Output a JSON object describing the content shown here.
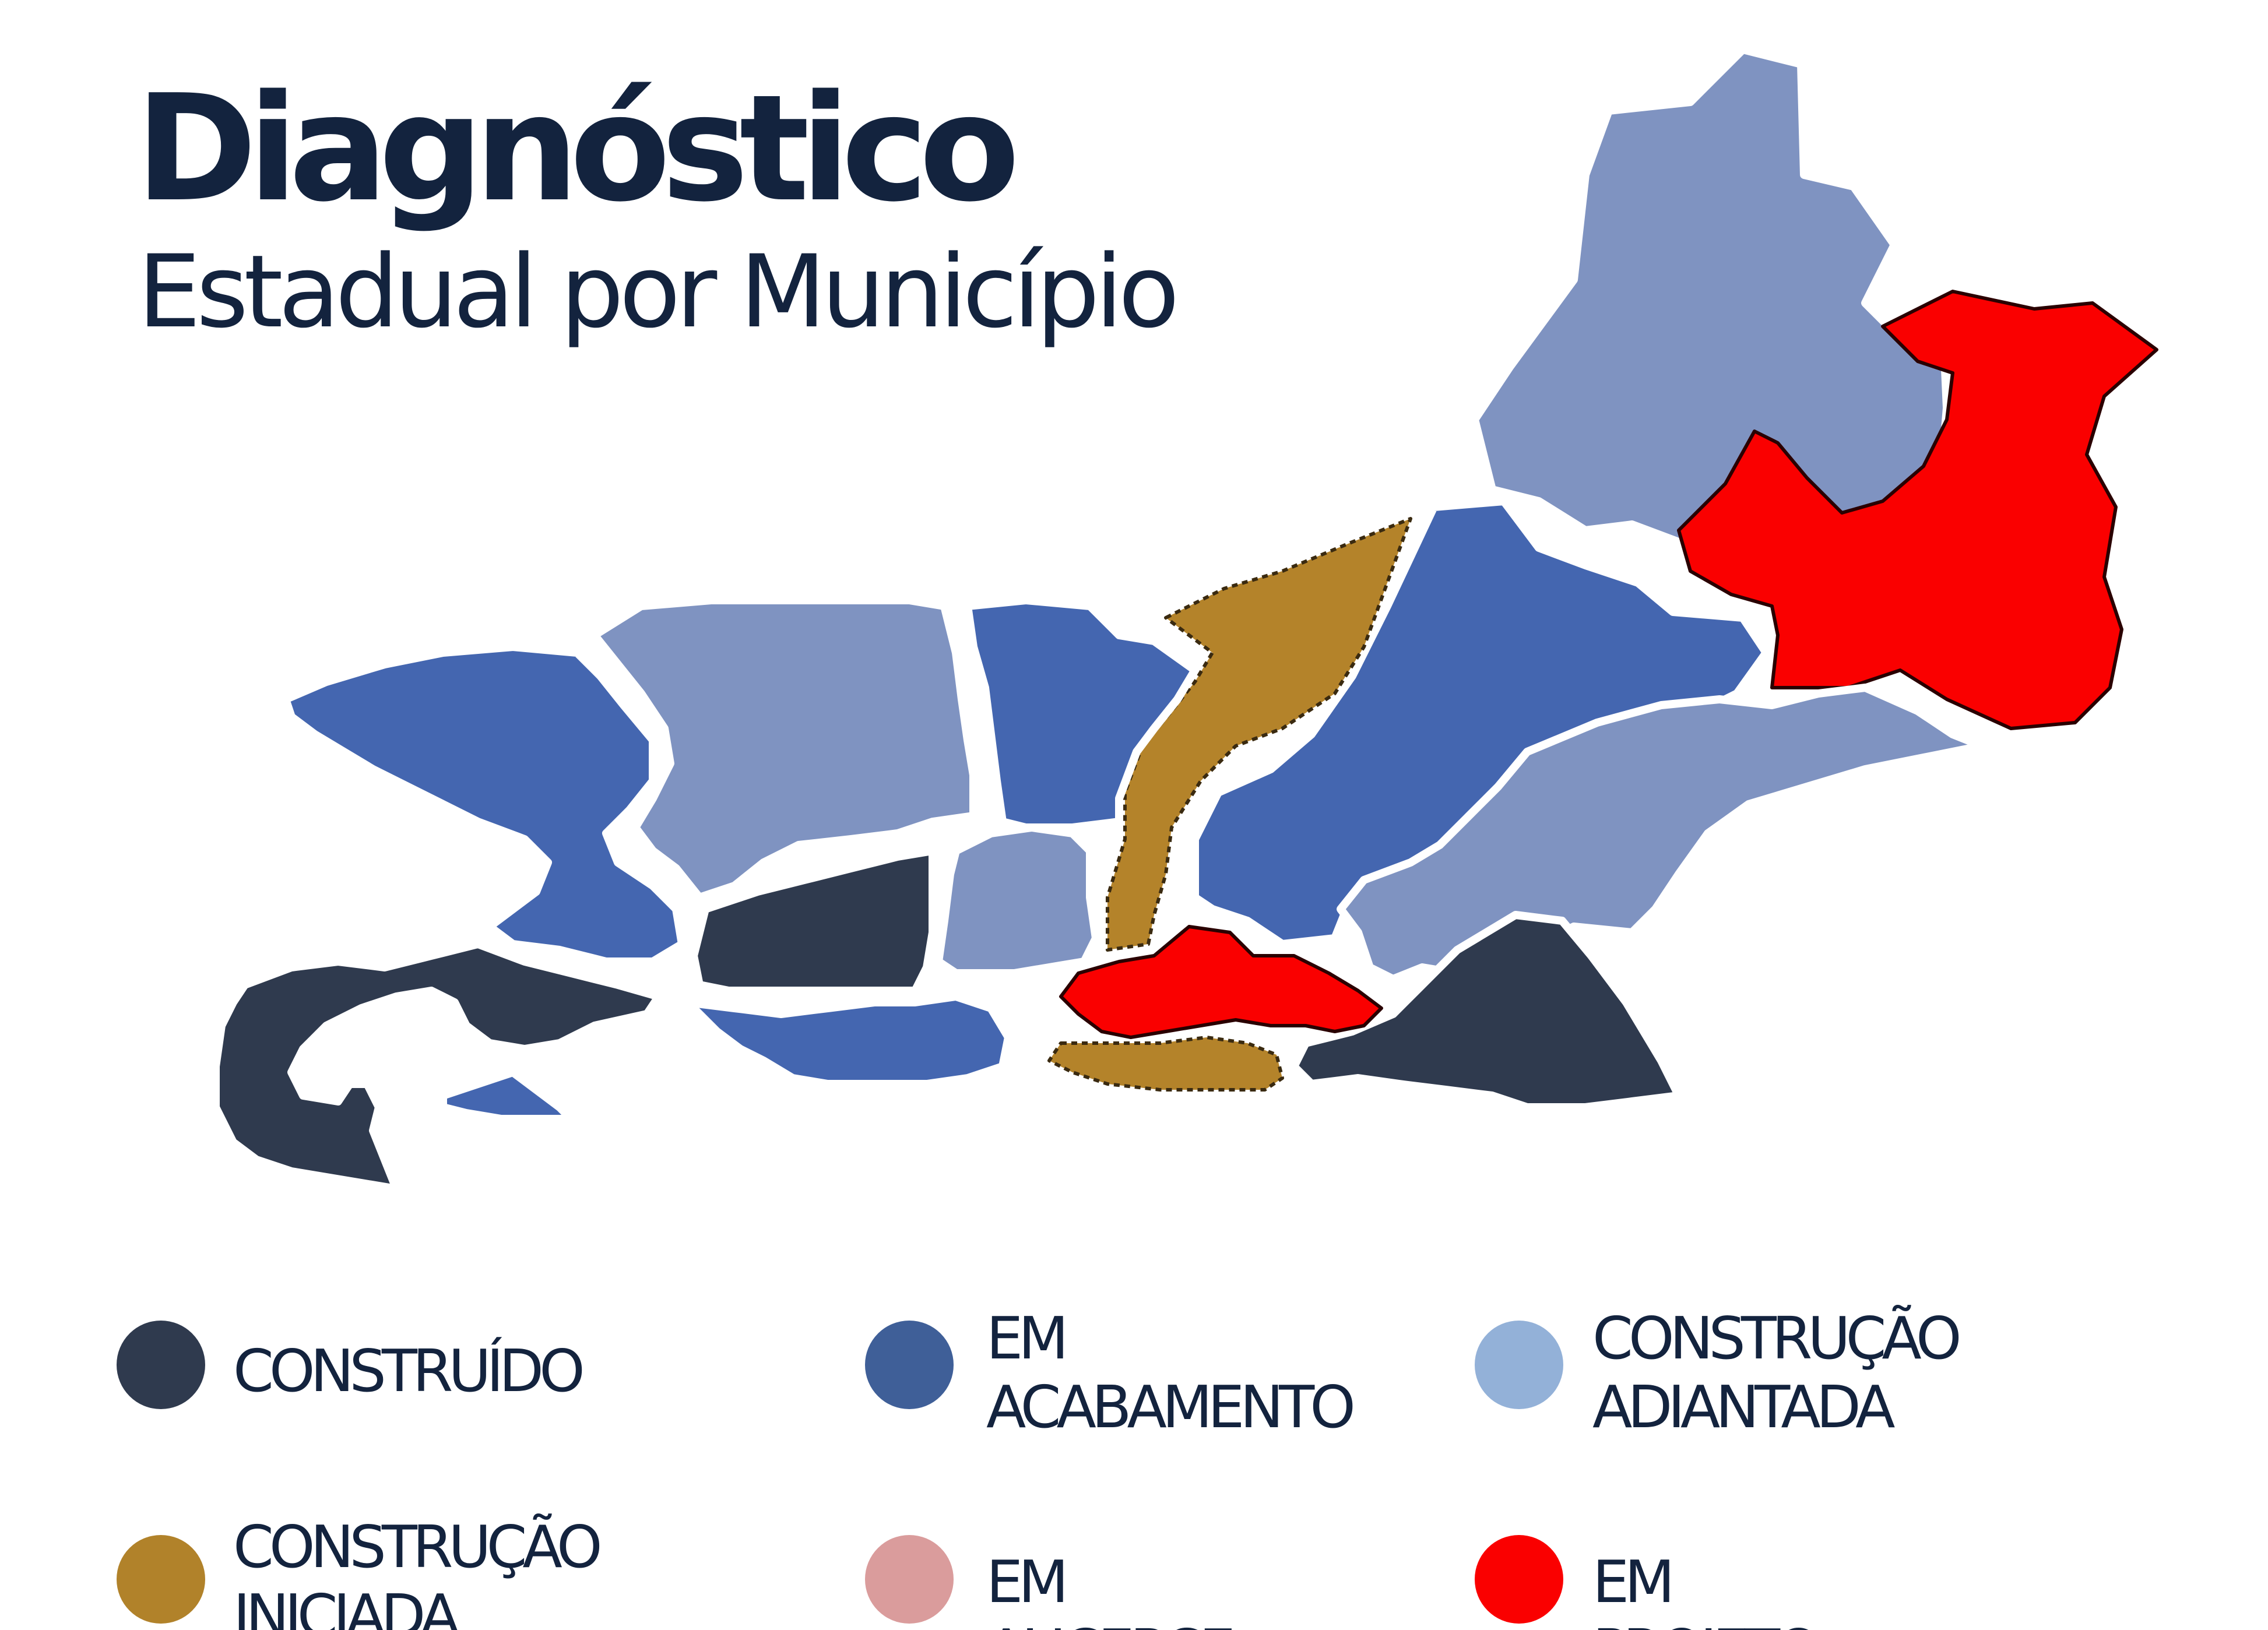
{
  "header": {
    "title": "Diagnóstico",
    "subtitle": "Estadual por Município"
  },
  "legend": {
    "items": [
      {
        "key": "construido",
        "label": "CONSTRUÍDO",
        "color": "#2f3a4e"
      },
      {
        "key": "em_acabamento",
        "label": "EM\nACABAMENTO",
        "color": "#3f5f98"
      },
      {
        "key": "construcao_adiantada",
        "label": "CONSTRUÇÃO\nADIANTADA",
        "color": "#93b1d8"
      },
      {
        "key": "construcao_iniciada",
        "label": "CONSTRUÇÃO\nINICIADA",
        "color": "#b1822a"
      },
      {
        "key": "em_alicerce",
        "label": "EM ALICERCE",
        "color": "#da9c9c"
      },
      {
        "key": "em_projeto",
        "label": "EM PROJETO",
        "color": "#fa0000"
      }
    ]
  },
  "map": {
    "region_colors": {
      "construido": "#2f3a4e",
      "em_acabamento": "#4466b0",
      "construcao_adiantada": "#7f93c1",
      "construcao_iniciada": "#b4832a",
      "em_projeto": "#fa0000"
    },
    "regions": [
      {
        "name": "region-north-large",
        "status": "construcao_adiantada"
      },
      {
        "name": "region-northeast",
        "status": "em_projeto"
      },
      {
        "name": "region-central-east",
        "status": "em_acabamento"
      },
      {
        "name": "region-central-strip",
        "status": "construcao_iniciada"
      },
      {
        "name": "region-east-middle",
        "status": "construcao_adiantada"
      },
      {
        "name": "region-southeast",
        "status": "construido"
      },
      {
        "name": "region-south-coast-red",
        "status": "em_projeto"
      },
      {
        "name": "region-south-coast-gold",
        "status": "construcao_iniciada"
      },
      {
        "name": "region-central-north",
        "status": "em_acabamento"
      },
      {
        "name": "region-central-small",
        "status": "construcao_adiantada"
      },
      {
        "name": "region-west-center",
        "status": "construcao_adiantada"
      },
      {
        "name": "region-west",
        "status": "em_acabamento"
      },
      {
        "name": "region-center-dark",
        "status": "construido"
      },
      {
        "name": "region-south-blue",
        "status": "em_acabamento"
      },
      {
        "name": "region-southwest",
        "status": "construido"
      },
      {
        "name": "region-southwest-small",
        "status": "em_acabamento"
      }
    ]
  }
}
